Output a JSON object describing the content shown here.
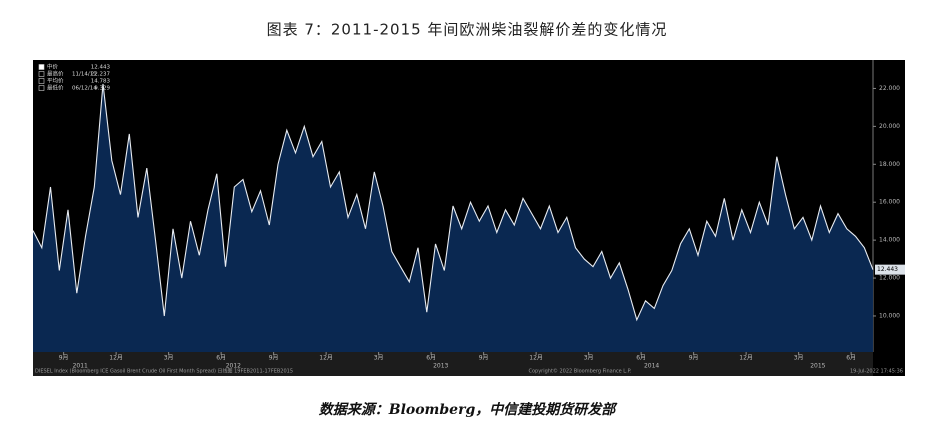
{
  "chart_data": {
    "type": "area",
    "title": "图表 7：2011-2015 年间欧洲柴油裂解价差的变化情况",
    "source": "数据来源：Bloomberg，中信建投期货研发部",
    "legend_items": [
      {
        "label": "中价",
        "value": 12.443
      },
      {
        "label": "最高价",
        "date": "11/14/11",
        "value": 22.237
      },
      {
        "label": "平均价",
        "value": 14.783
      },
      {
        "label": "最低价",
        "date": "06/12/14",
        "value": 9.329
      }
    ],
    "series": [
      {
        "color": "#e8ecf2",
        "fill": "#0b2a55",
        "values": [
          14.5,
          13.6,
          16.8,
          12.4,
          15.6,
          11.2,
          14.2,
          16.8,
          22.237,
          18.2,
          16.4,
          19.6,
          15.2,
          17.8,
          14.0,
          10.0,
          14.6,
          12.0,
          15.0,
          13.2,
          15.6,
          17.5,
          12.6,
          16.8,
          17.2,
          15.5,
          16.6,
          14.8,
          18.0,
          19.8,
          18.6,
          20.0,
          18.4,
          19.2,
          16.8,
          17.6,
          15.2,
          16.4,
          14.6,
          17.6,
          15.8,
          13.4,
          12.6,
          11.8,
          13.6,
          10.2,
          13.8,
          12.4,
          15.8,
          14.6,
          16.0,
          15.0,
          15.8,
          14.4,
          15.6,
          14.8,
          16.2,
          15.4,
          14.6,
          15.8,
          14.4,
          15.2,
          13.6,
          13.0,
          12.6,
          13.4,
          12.0,
          12.8,
          11.4,
          9.8,
          10.8,
          10.4,
          11.6,
          12.4,
          13.8,
          14.6,
          13.2,
          15.0,
          14.2,
          16.2,
          14.0,
          15.6,
          14.4,
          16.0,
          14.8,
          18.4,
          16.4,
          14.6,
          15.2,
          14.0,
          15.8,
          14.4,
          15.4,
          14.6,
          14.2,
          13.6,
          12.443
        ]
      }
    ],
    "xlim": [
      0,
      96
    ],
    "xticks": [
      {
        "value": 3.5,
        "label": "9月"
      },
      {
        "value": 9.5,
        "label": "12月"
      },
      {
        "value": 15.5,
        "label": "3月"
      },
      {
        "value": 21.5,
        "label": "6月"
      },
      {
        "value": 27.5,
        "label": "9月"
      },
      {
        "value": 33.5,
        "label": "12月"
      },
      {
        "value": 39.5,
        "label": "3月"
      },
      {
        "value": 45.5,
        "label": "6月"
      },
      {
        "value": 51.5,
        "label": "9月"
      },
      {
        "value": 57.5,
        "label": "12月"
      },
      {
        "value": 63.5,
        "label": "3月"
      },
      {
        "value": 69.5,
        "label": "6月"
      },
      {
        "value": 75.5,
        "label": "9月"
      },
      {
        "value": 81.5,
        "label": "12月"
      },
      {
        "value": 87.5,
        "label": "3月"
      },
      {
        "value": 93.5,
        "label": "6月"
      }
    ],
    "year_labels": [
      {
        "value": 5.4,
        "label": "2011"
      },
      {
        "value": 22.9,
        "label": "2012"
      },
      {
        "value": 46.6,
        "label": "2013"
      },
      {
        "value": 70.7,
        "label": "2014"
      },
      {
        "value": 89.7,
        "label": "2015"
      }
    ],
    "ylim": [
      8.1,
      23.5
    ],
    "yticks": [
      {
        "value": 10,
        "label": "10.000"
      },
      {
        "value": 12,
        "label": "12.000"
      },
      {
        "value": 14,
        "label": "14.000"
      },
      {
        "value": 16,
        "label": "16.000"
      },
      {
        "value": 18,
        "label": "18.000"
      },
      {
        "value": 20,
        "label": "20.000"
      },
      {
        "value": 22,
        "label": "22.000"
      }
    ],
    "footer_left": "DIESEL Index (Bloomberg ICE Gasoil Brent Crude Oil First Month Spread) 日线图 19FEB2011-17FEB2015",
    "footer_mid": "Copyright© 2022 Bloomberg Finance L.P.",
    "footer_right": "19-Jul-2022 17:45:36"
  }
}
